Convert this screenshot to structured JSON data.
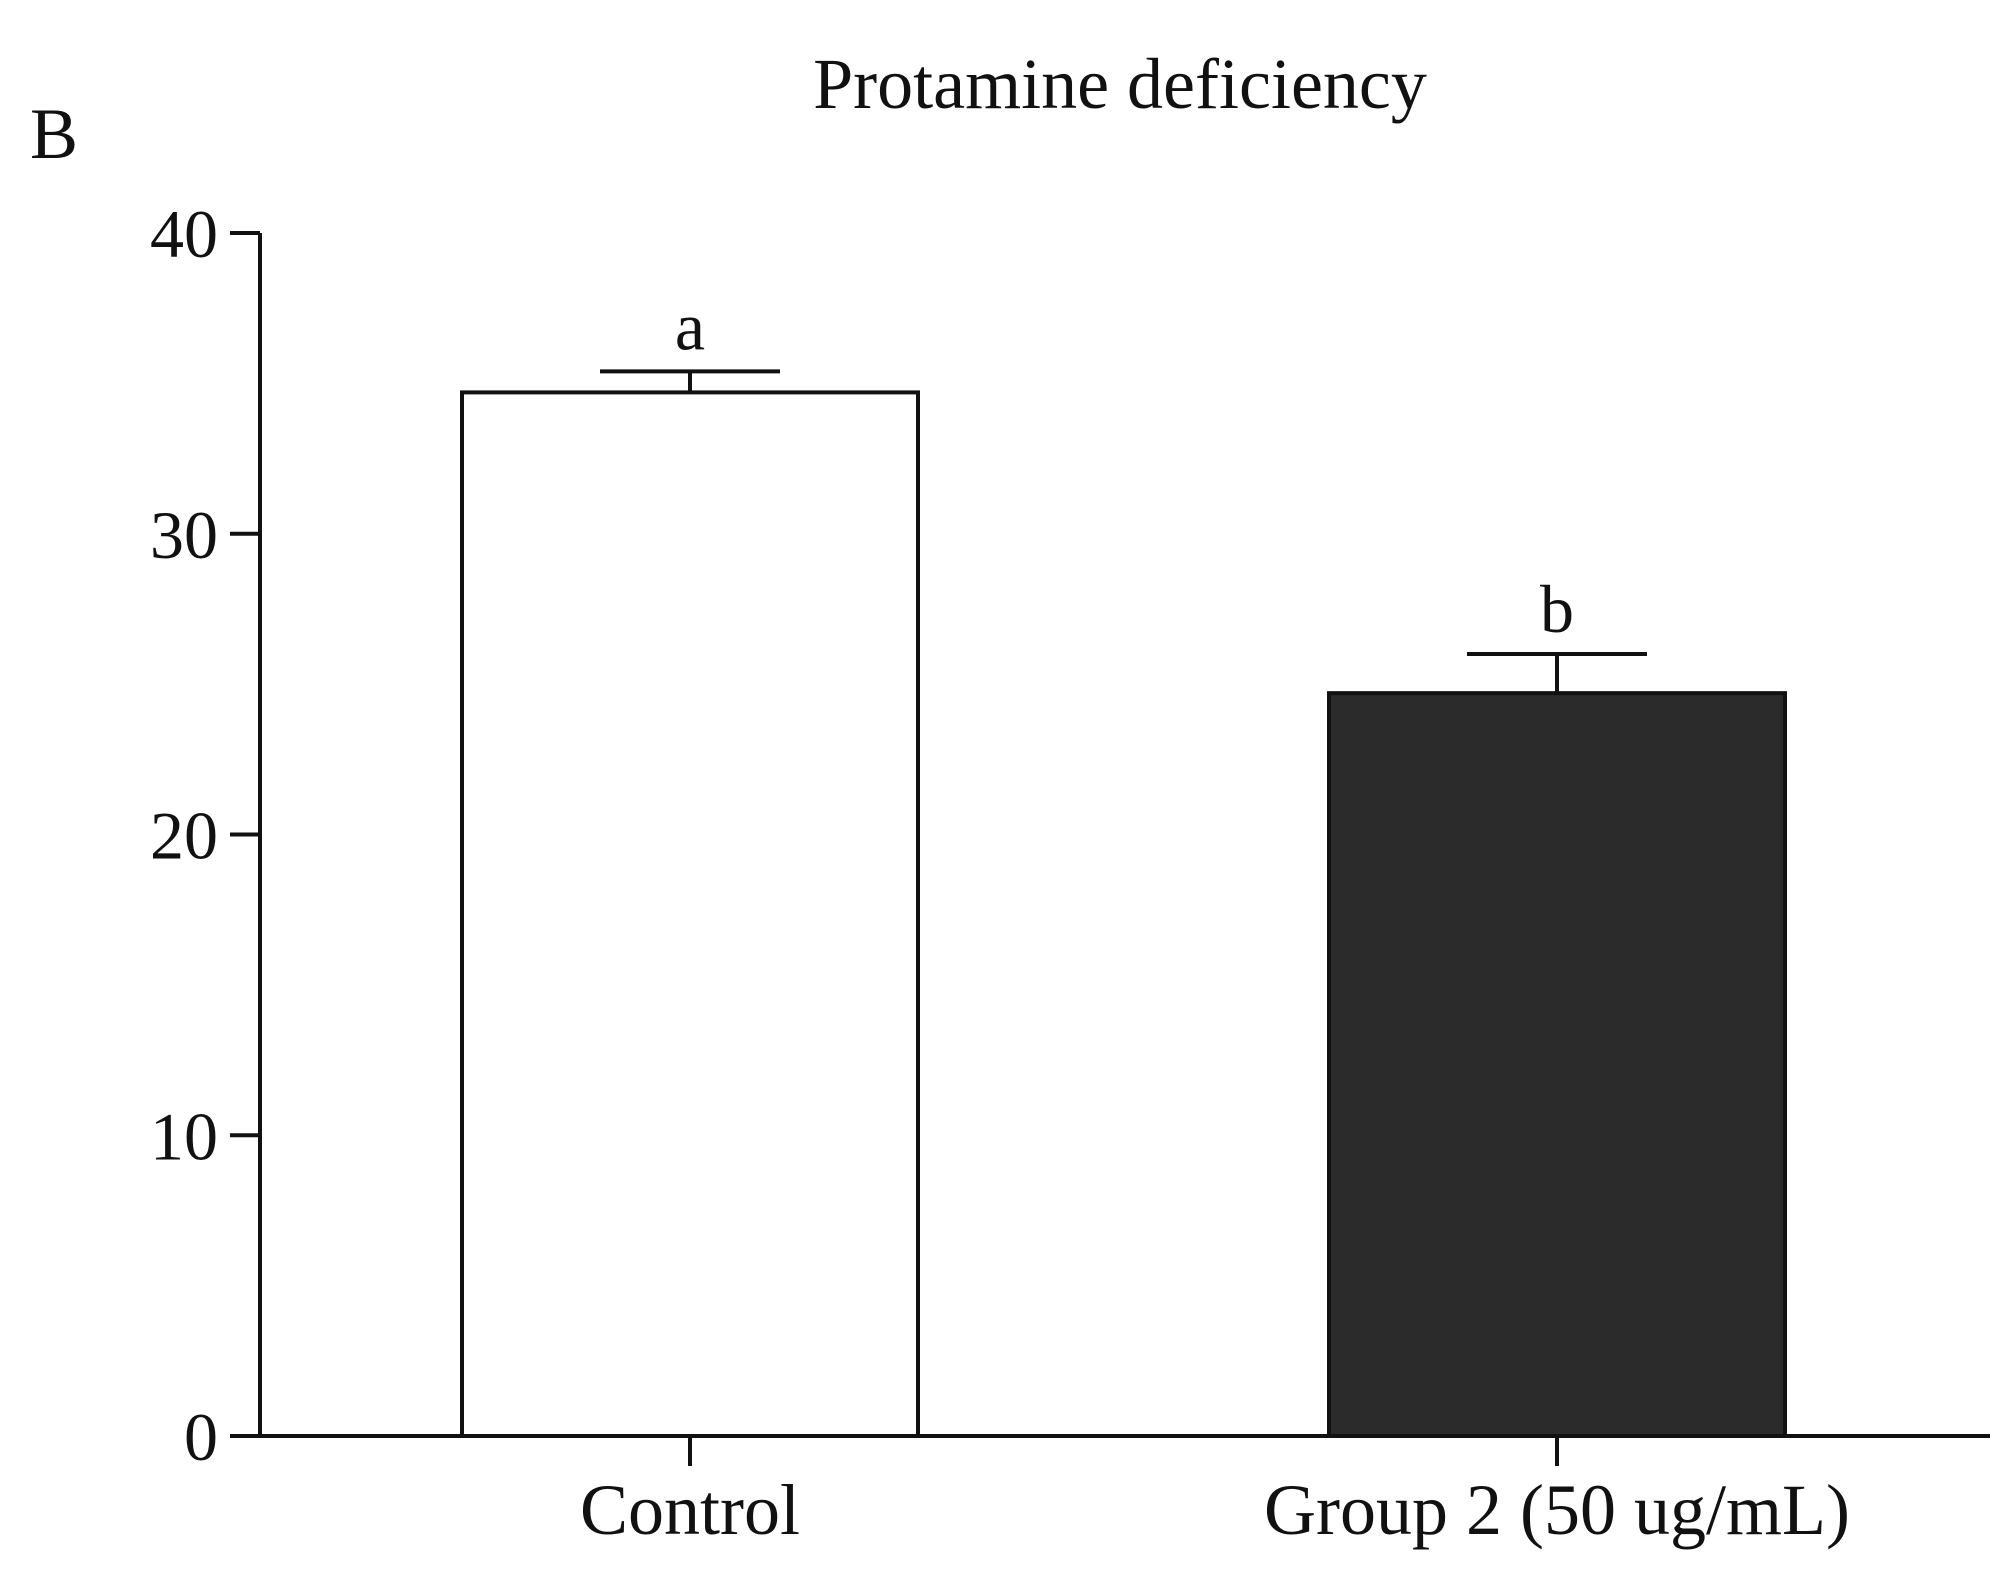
{
  "chart_data": {
    "panel_label": "B",
    "type": "bar",
    "title": "Protamine deficiency",
    "xlabel": "",
    "ylabel": "",
    "ylim": [
      0,
      40
    ],
    "yticks": [
      0,
      10,
      20,
      30,
      40
    ],
    "grid": false,
    "legend": "none",
    "categories": [
      "Control",
      "Group 2 (50 ug/mL)"
    ],
    "values": [
      34.7,
      24.7
    ],
    "errors": [
      0.7,
      1.3
    ],
    "significance_letters": [
      "a",
      "b"
    ],
    "colors": [
      "#ffffff",
      "#2b2b2b"
    ]
  }
}
